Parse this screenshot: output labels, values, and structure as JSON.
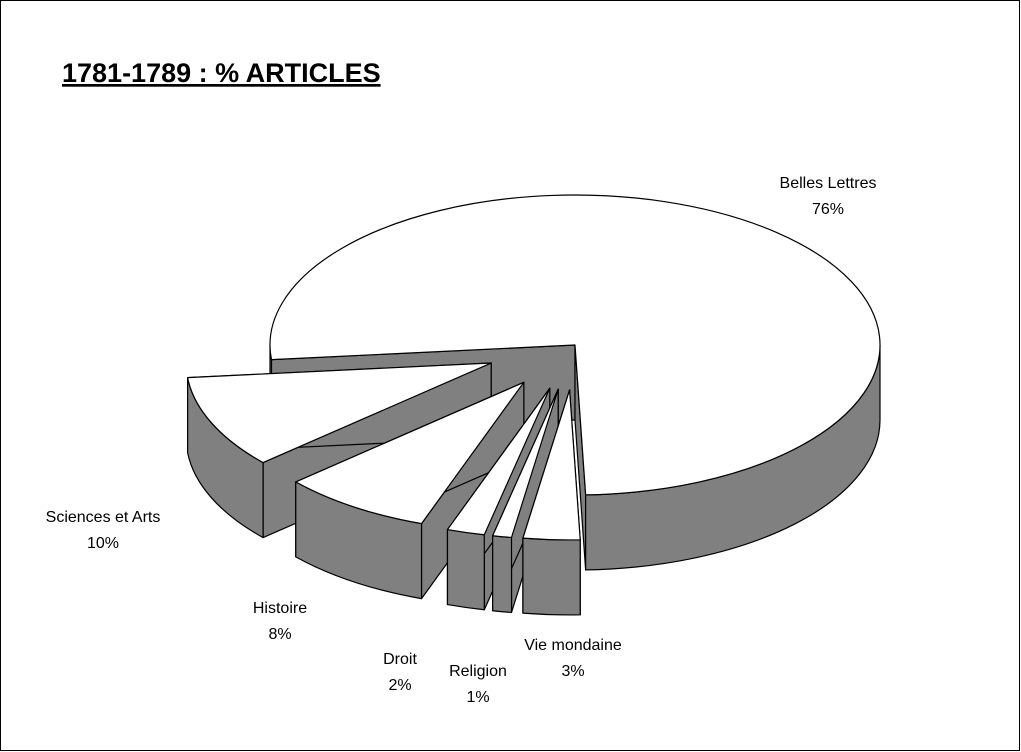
{
  "chart_data": {
    "type": "pie",
    "title": "1781-1789 : % ARTICLES",
    "categories": [
      "Belles Lettres",
      "Vie mondaine",
      "Religion",
      "Droit",
      "Histoire",
      "Sciences et Arts"
    ],
    "values": [
      76,
      3,
      1,
      2,
      8,
      10
    ],
    "value_labels": [
      "76%",
      "3%",
      "1%",
      "2%",
      "8%",
      "10%"
    ],
    "color": "#ffffff",
    "side_color": "#808080",
    "three_d": true,
    "exploded": true
  }
}
